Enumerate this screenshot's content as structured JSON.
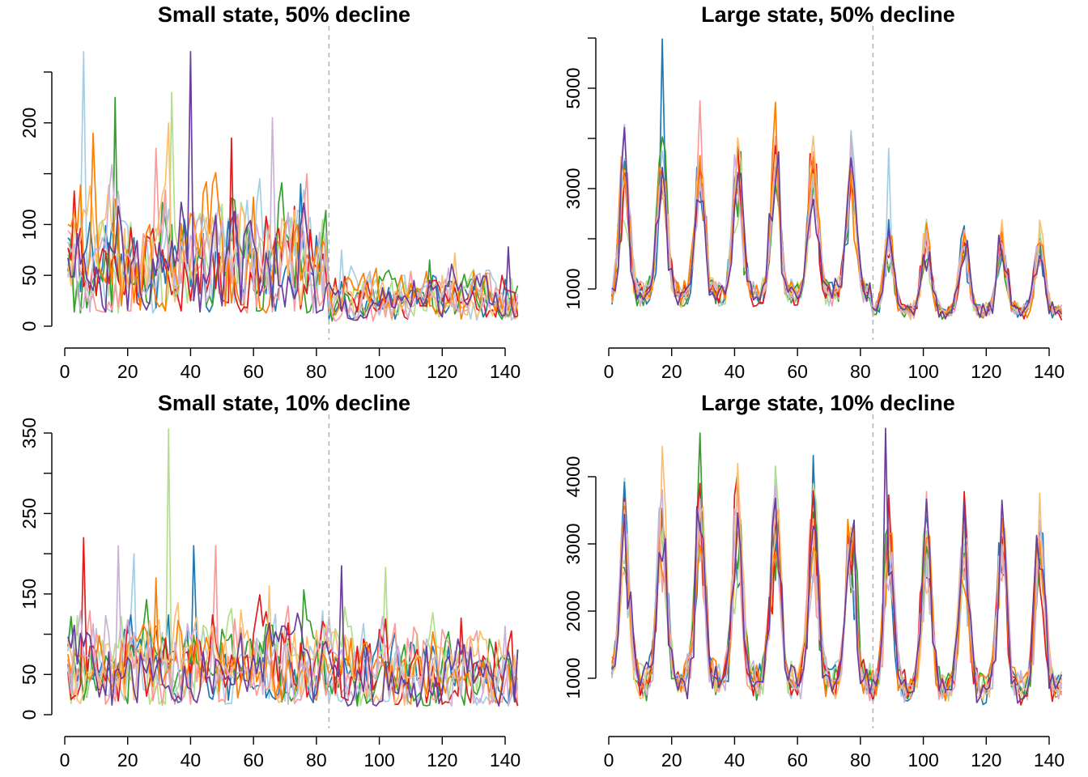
{
  "colors": [
    "#A6CEE3",
    "#1F78B4",
    "#B2DF8A",
    "#33A02C",
    "#FB9A99",
    "#E31A1C",
    "#FDBF6F",
    "#FF7F00",
    "#CAB2D6",
    "#6A3D9A"
  ],
  "chart_data": [
    {
      "type": "line",
      "title": "Small state, 50% decline",
      "xlim": [
        1,
        144
      ],
      "ylim": [
        0,
        280
      ],
      "xticks": [
        0,
        20,
        40,
        60,
        80,
        100,
        120,
        140
      ],
      "yticks": [
        0,
        50,
        100,
        200
      ],
      "ytick_marks": [
        0,
        50,
        100,
        150,
        200,
        250
      ],
      "vline_x": 84,
      "pattern": {
        "kind": "noisy",
        "pre": 62,
        "post": 26,
        "noise": 0.45,
        "spikes_pre": [
          [
            6,
            270
          ],
          [
            16,
            225
          ],
          [
            33,
            200
          ],
          [
            40,
            270
          ],
          [
            34,
            230
          ],
          [
            53,
            185
          ],
          [
            66,
            205
          ],
          [
            75,
            140
          ],
          [
            29,
            175
          ],
          [
            9,
            190
          ]
        ],
        "spikes_post": [
          [
            88,
            75
          ],
          [
            116,
            65
          ],
          [
            124,
            72
          ],
          [
            141,
            78
          ]
        ]
      },
      "series": [
        {
          "values": []
        },
        {
          "values": []
        },
        {
          "values": []
        },
        {
          "values": []
        },
        {
          "values": []
        },
        {
          "values": []
        },
        {
          "values": []
        },
        {
          "values": []
        },
        {
          "values": []
        },
        {
          "values": []
        }
      ]
    },
    {
      "type": "line",
      "title": "Large state, 50% decline",
      "xlim": [
        1,
        144
      ],
      "ylim": [
        300,
        6000
      ],
      "xticks": [
        0,
        20,
        40,
        60,
        80,
        100,
        120,
        140
      ],
      "yticks": [
        1000,
        3000,
        5000
      ],
      "ytick_marks": [
        1000,
        2000,
        3000,
        4000,
        5000,
        6000
      ],
      "vline_x": 84,
      "pattern": {
        "kind": "seasonal",
        "period": 12,
        "phase_peaks": [
          5,
          17,
          29,
          41,
          53,
          65,
          77,
          89,
          101,
          113,
          125,
          137
        ],
        "peak_pre": 3300,
        "peak_post": 1900,
        "trough_pre": 900,
        "trough_post": 550,
        "spikes": [
          [
            17,
            5980
          ],
          [
            29,
            4750
          ],
          [
            53,
            4720
          ],
          [
            89,
            3800
          ]
        ]
      },
      "series": [
        {
          "values": []
        },
        {
          "values": []
        },
        {
          "values": []
        },
        {
          "values": []
        },
        {
          "values": []
        },
        {
          "values": []
        },
        {
          "values": []
        },
        {
          "values": []
        },
        {
          "values": []
        },
        {
          "values": []
        }
      ]
    },
    {
      "type": "line",
      "title": "Small state, 10% decline",
      "xlim": [
        1,
        144
      ],
      "ylim": [
        0,
        360
      ],
      "xticks": [
        0,
        20,
        40,
        60,
        80,
        100,
        120,
        140
      ],
      "yticks": [
        0,
        50,
        150,
        250,
        350
      ],
      "ytick_marks": [
        0,
        50,
        100,
        150,
        200,
        250,
        300,
        350
      ],
      "vline_x": 84,
      "pattern": {
        "kind": "noisy",
        "pre": 60,
        "post": 52,
        "noise": 0.45,
        "spikes_pre": [
          [
            33,
            355
          ],
          [
            6,
            220
          ],
          [
            17,
            210
          ],
          [
            41,
            210
          ],
          [
            48,
            210
          ],
          [
            29,
            170
          ],
          [
            22,
            200
          ],
          [
            76,
            155
          ],
          [
            65,
            160
          ]
        ],
        "spikes_post": [
          [
            88,
            185
          ],
          [
            102,
            183
          ],
          [
            126,
            120
          ],
          [
            140,
            110
          ]
        ]
      },
      "series": [
        {
          "values": []
        },
        {
          "values": []
        },
        {
          "values": []
        },
        {
          "values": []
        },
        {
          "values": []
        },
        {
          "values": []
        },
        {
          "values": []
        },
        {
          "values": []
        },
        {
          "values": []
        },
        {
          "values": []
        }
      ]
    },
    {
      "type": "line",
      "title": "Large state, 10% decline",
      "xlim": [
        1,
        144
      ],
      "ylim": [
        500,
        4800
      ],
      "xticks": [
        0,
        20,
        40,
        60,
        80,
        100,
        120,
        140
      ],
      "yticks": [
        1000,
        2000,
        3000,
        4000
      ],
      "ytick_marks": [
        1000,
        2000,
        3000,
        4000
      ],
      "vline_x": 84,
      "pattern": {
        "kind": "seasonal",
        "period": 12,
        "phase_peaks": [
          5,
          17,
          29,
          41,
          53,
          65,
          77,
          89,
          101,
          113,
          125,
          137
        ],
        "peak_pre": 3300,
        "peak_post": 3000,
        "trough_pre": 950,
        "trough_post": 850,
        "spikes": [
          [
            29,
            4650
          ],
          [
            17,
            4450
          ],
          [
            88,
            4720
          ],
          [
            53,
            4150
          ],
          [
            113,
            3780
          ]
        ]
      },
      "series": [
        {
          "values": []
        },
        {
          "values": []
        },
        {
          "values": []
        },
        {
          "values": []
        },
        {
          "values": []
        },
        {
          "values": []
        },
        {
          "values": []
        },
        {
          "values": []
        },
        {
          "values": []
        },
        {
          "values": []
        }
      ]
    }
  ]
}
